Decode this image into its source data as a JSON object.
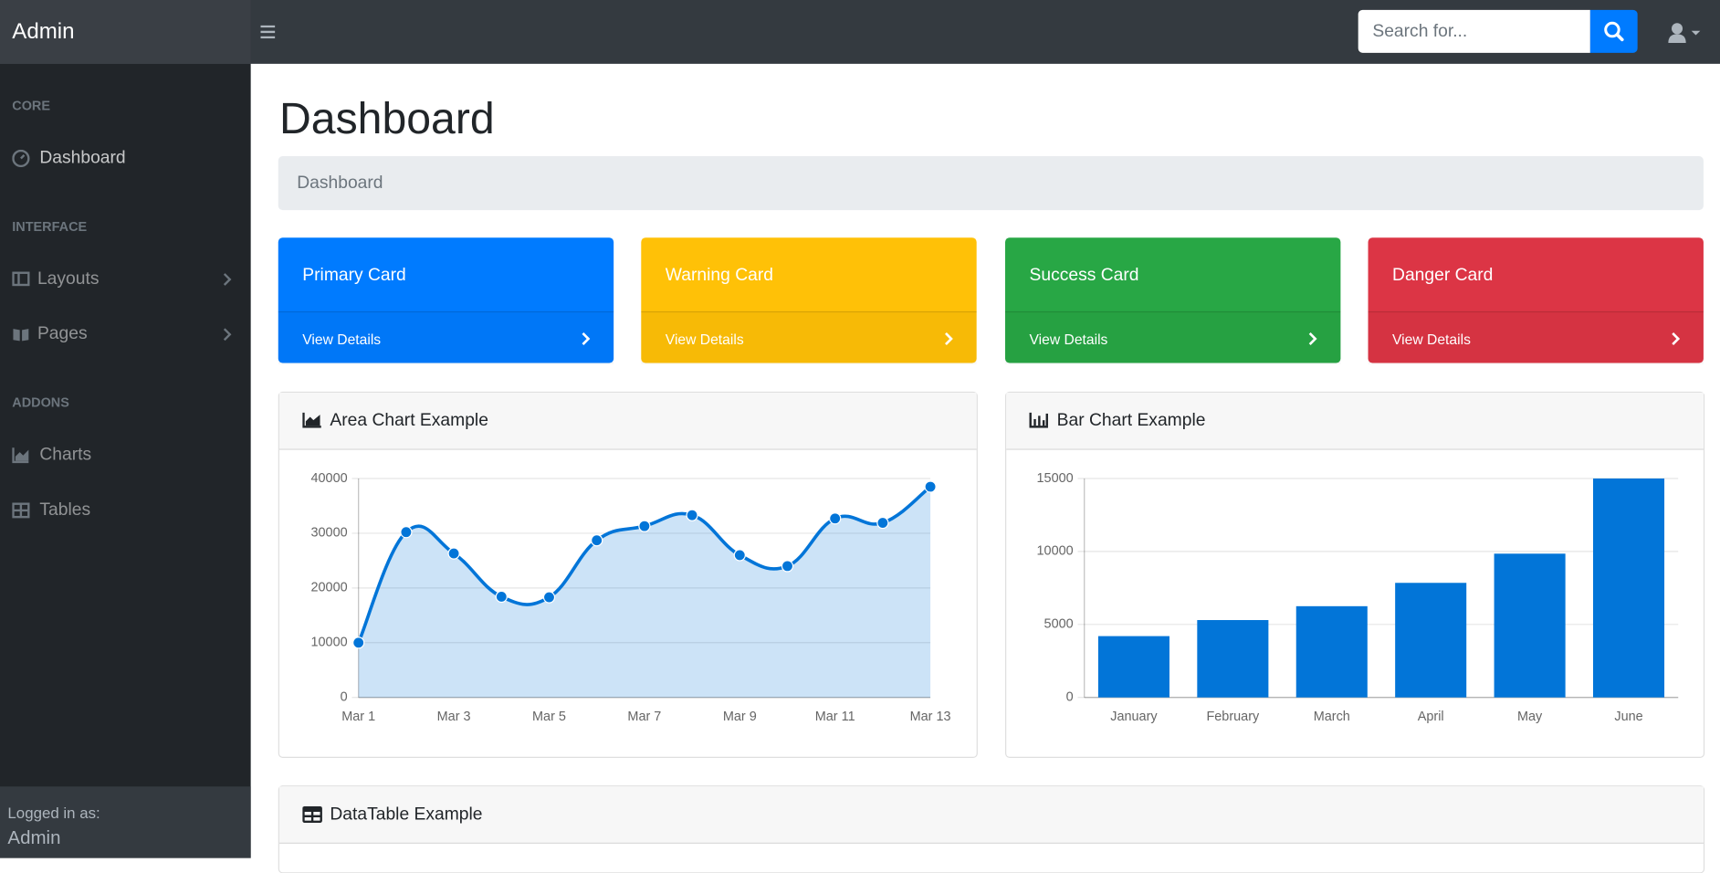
{
  "navbar": {
    "brand": "Admin",
    "search_placeholder": "Search for..."
  },
  "sidebar": {
    "sections": [
      {
        "heading": "CORE",
        "items": [
          "Dashboard"
        ]
      },
      {
        "heading": "INTERFACE",
        "items": [
          "Layouts",
          "Pages"
        ]
      },
      {
        "heading": "ADDONS",
        "items": [
          "Charts",
          "Tables"
        ]
      }
    ],
    "footer": {
      "label": "Logged in as:",
      "user": "Admin"
    }
  },
  "page": {
    "title": "Dashboard",
    "breadcrumb": "Dashboard"
  },
  "cards": [
    {
      "title": "Primary Card",
      "link": "View Details",
      "color": "#007bff"
    },
    {
      "title": "Warning Card",
      "link": "View Details",
      "color": "#ffc107"
    },
    {
      "title": "Success Card",
      "link": "View Details",
      "color": "#28a745"
    },
    {
      "title": "Danger Card",
      "link": "View Details",
      "color": "#dc3545"
    }
  ],
  "chart_data": [
    {
      "type": "area",
      "title": "Area Chart Example",
      "categories": [
        "Mar 1",
        null,
        "Mar 3",
        null,
        "Mar 5",
        null,
        "Mar 7",
        null,
        "Mar 9",
        null,
        "Mar 11",
        null,
        "Mar 13"
      ],
      "values": [
        10000,
        30200,
        26300,
        18400,
        18300,
        28700,
        31300,
        33300,
        26000,
        24000,
        32700,
        31900,
        38500
      ],
      "color": "#0275d8",
      "ylim": [
        0,
        40000
      ],
      "yticks": [
        0,
        10000,
        20000,
        30000,
        40000
      ],
      "grid": true
    },
    {
      "type": "bar",
      "title": "Bar Chart Example",
      "categories": [
        "January",
        "February",
        "March",
        "April",
        "May",
        "June"
      ],
      "values": [
        4200,
        5300,
        6250,
        7850,
        9850,
        15000
      ],
      "color": "#0275d8",
      "ylim": [
        0,
        15000
      ],
      "yticks": [
        0,
        5000,
        10000,
        15000
      ],
      "grid": true
    }
  ],
  "datatable": {
    "title": "DataTable Example"
  }
}
